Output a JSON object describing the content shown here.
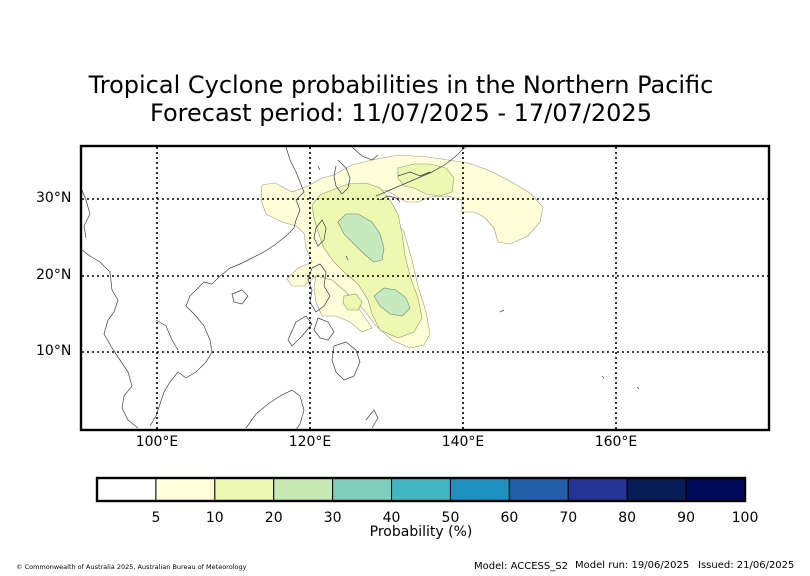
{
  "title": {
    "line1": "Tropical Cyclone probabilities in the Northern Pacific",
    "line2": "Forecast period: 11/07/2025 - 17/07/2025"
  },
  "map": {
    "lat_labels": [
      "30°N",
      "20°N",
      "10°N"
    ],
    "lon_labels": [
      "100°E",
      "120°E",
      "140°E",
      "160°E"
    ],
    "extent": {
      "lon": [
        90,
        180
      ],
      "lat": [
        0,
        37
      ]
    },
    "gridlines": true,
    "coastline_color": "#3c3c50",
    "probability_regions": [
      {
        "level": 5,
        "color": "#fefed8",
        "description": "outer 5-10% region over East China Sea / Philippine Sea"
      },
      {
        "level": 10,
        "color": "#edf8b1",
        "description": "10-20% region east of Taiwan extending north to Japan"
      },
      {
        "level": 20,
        "color": "#c7e9c0",
        "description": "20-30% patches east of Taiwan and east of Luzon"
      }
    ]
  },
  "colorbar": {
    "label": "Probability (%)",
    "ticks": [
      "5",
      "10",
      "20",
      "30",
      "40",
      "50",
      "60",
      "70",
      "80",
      "90",
      "100"
    ],
    "colors": [
      "#ffffff",
      "#ffffd9",
      "#edf8b1",
      "#c7e9b4",
      "#7fcdbb",
      "#41b6c4",
      "#1d91c0",
      "#225ea8",
      "#253494",
      "#081d58",
      "#000a5a"
    ]
  },
  "footer": {
    "copyright": "© Commonwealth of Australia 2025, Australian Bureau of Meteorology",
    "model": "Model: ACCESS_S2",
    "run": "Model run: 19/06/2025",
    "issued": "Issued: 21/06/2025"
  }
}
